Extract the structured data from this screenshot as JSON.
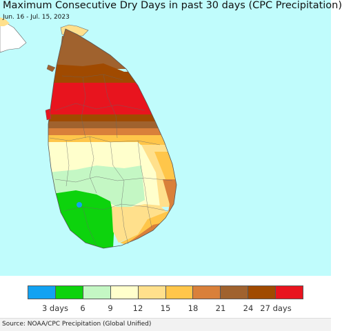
{
  "title": "Maximum Consecutive Dry Days in past 30 days (CPC Precipitation)",
  "subtitle": "Jun. 16 - Jul. 15, 2023",
  "source": "Source: NOAA/CPC Precipitation (Global Unified)",
  "colors": {
    "ocean": "#c0fcfc",
    "land_outside": "#ffffff",
    "border": "#666666"
  },
  "legend": {
    "colors": [
      "#12a2f2",
      "#0dd30d",
      "#c4f7c4",
      "#ffffcc",
      "#ffe08c",
      "#ffc64a",
      "#d9803a",
      "#a0622e",
      "#a04a00",
      "#e8141e"
    ],
    "ticks": [
      {
        "label": "3 days",
        "pos": 1
      },
      {
        "label": "6",
        "pos": 2
      },
      {
        "label": "9",
        "pos": 3
      },
      {
        "label": "12",
        "pos": 4
      },
      {
        "label": "15",
        "pos": 5
      },
      {
        "label": "18",
        "pos": 6
      },
      {
        "label": "21",
        "pos": 7
      },
      {
        "label": "24",
        "pos": 8
      },
      {
        "label": "27 days",
        "pos": 9
      }
    ]
  }
}
